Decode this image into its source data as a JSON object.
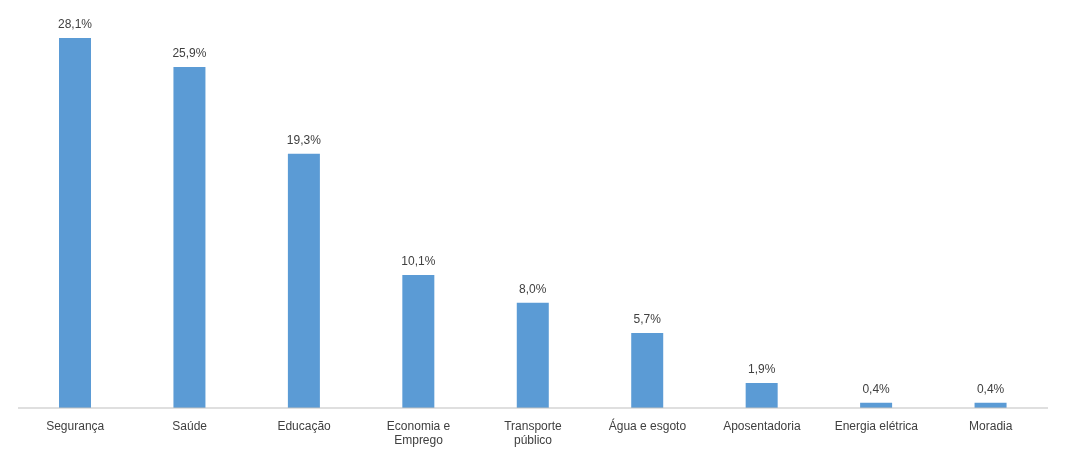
{
  "chart_data": {
    "type": "bar",
    "categories": [
      "Segurança",
      "Saúde",
      "Educação",
      "Economia e Emprego",
      "Transporte público",
      "Água e esgoto",
      "Aposentadoria",
      "Energia elétrica",
      "Moradia"
    ],
    "values": [
      28.1,
      25.9,
      19.3,
      10.1,
      8.0,
      5.7,
      1.9,
      0.4,
      0.4
    ],
    "value_labels": [
      "28,1%",
      "25,9%",
      "19,3%",
      "10,1%",
      "8,0%",
      "5,7%",
      "1,9%",
      "0,4%",
      "0,4%"
    ],
    "color": "#5b9bd5",
    "tick_labels": "x"
  }
}
